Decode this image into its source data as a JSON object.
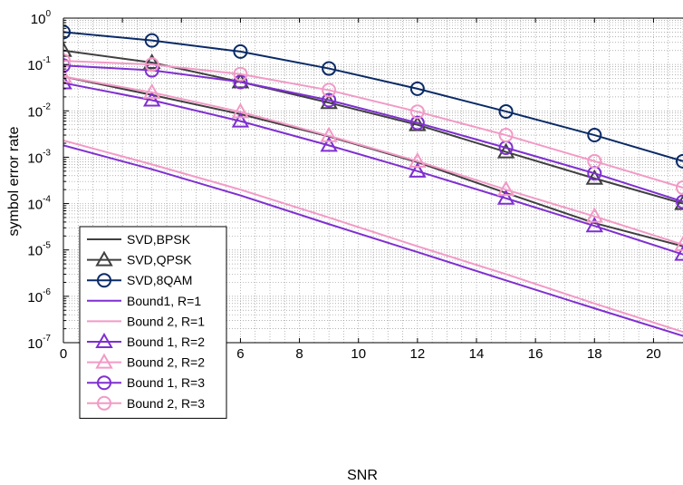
{
  "chart_data": {
    "type": "line",
    "xlabel": "SNR",
    "ylabel": "symbol error rate",
    "xlim": [
      0,
      21
    ],
    "ylim": [
      1e-07,
      1
    ],
    "yscale": "log",
    "grid": "on (major and minor, dotted)",
    "legend_position": "bottom-left",
    "x_ticks": [
      0,
      2,
      4,
      6,
      8,
      10,
      12,
      14,
      16,
      18,
      20
    ],
    "x_tick_labels": [
      "0",
      "2",
      "4",
      "6",
      "8",
      "10",
      "12",
      "14",
      "16",
      "18",
      "20"
    ],
    "y_ticks": [
      1e-07,
      1e-06,
      1e-05,
      0.0001,
      0.001,
      0.01,
      0.1,
      1
    ],
    "y_tick_labels": [
      {
        "base": "10",
        "exp": "-7"
      },
      {
        "base": "10",
        "exp": "-6"
      },
      {
        "base": "10",
        "exp": "-5"
      },
      {
        "base": "10",
        "exp": "-4"
      },
      {
        "base": "10",
        "exp": "-3"
      },
      {
        "base": "10",
        "exp": "-2"
      },
      {
        "base": "10",
        "exp": "-1"
      },
      {
        "base": "10",
        "exp": "0"
      }
    ],
    "series": [
      {
        "name": "SVD,BPSK",
        "color": "#404040",
        "marker": "none",
        "x": [
          0,
          3,
          6,
          9,
          12,
          15,
          18,
          21
        ],
        "y": [
          0.055,
          0.022,
          0.0085,
          0.0028,
          0.00078,
          0.00017,
          3.8e-05,
          1.2e-05
        ]
      },
      {
        "name": "SVD,QPSK",
        "color": "#404040",
        "marker": "triangle",
        "x": [
          0,
          3,
          6,
          9,
          12,
          15,
          18,
          21
        ],
        "y": [
          0.2,
          0.11,
          0.042,
          0.015,
          0.005,
          0.0013,
          0.00035,
          0.0001
        ]
      },
      {
        "name": "SVD,8QAM",
        "color": "#0a2a66",
        "marker": "circle",
        "x": [
          0,
          3,
          6,
          9,
          12,
          15,
          18,
          21
        ],
        "y": [
          0.5,
          0.33,
          0.19,
          0.082,
          0.03,
          0.0097,
          0.003,
          0.00082
        ]
      },
      {
        "name": "Bound1, R=1",
        "color": "#7f2fd0",
        "marker": "none",
        "x": [
          0,
          3,
          6,
          9,
          12,
          15,
          18,
          21
        ],
        "y": [
          0.0018,
          0.00055,
          0.00015,
          3.6e-05,
          9e-06,
          2.2e-06,
          5.5e-07,
          1.4e-07
        ]
      },
      {
        "name": "Bound 2, R=1",
        "color": "#f29ac6",
        "marker": "none",
        "x": [
          0,
          3,
          6,
          9,
          12,
          15,
          18,
          21
        ],
        "y": [
          0.0023,
          0.0007,
          0.0002,
          5e-05,
          1.2e-05,
          3e-06,
          7e-07,
          1.7e-07
        ]
      },
      {
        "name": "Bound 1, R=2",
        "color": "#7f2fd0",
        "marker": "triangle",
        "x": [
          0,
          3,
          6,
          9,
          12,
          15,
          18,
          21
        ],
        "y": [
          0.04,
          0.017,
          0.006,
          0.0018,
          0.0005,
          0.00013,
          3.3e-05,
          8e-06
        ]
      },
      {
        "name": "Bound 2, R=2",
        "color": "#f29ac6",
        "marker": "triangle",
        "x": [
          0,
          3,
          6,
          9,
          12,
          15,
          18,
          21
        ],
        "y": [
          0.055,
          0.025,
          0.0095,
          0.0029,
          0.00082,
          0.0002,
          5.3e-05,
          1.3e-05
        ]
      },
      {
        "name": "Bound 1, R=3",
        "color": "#7f2fd0",
        "marker": "circle",
        "x": [
          0,
          3,
          6,
          9,
          12,
          15,
          18,
          21
        ],
        "y": [
          0.095,
          0.075,
          0.042,
          0.017,
          0.0055,
          0.0016,
          0.00045,
          0.00011
        ]
      },
      {
        "name": "Bound 2, R=3",
        "color": "#f29ac6",
        "marker": "circle",
        "x": [
          0,
          3,
          6,
          9,
          12,
          15,
          18,
          21
        ],
        "y": [
          0.12,
          0.1,
          0.062,
          0.028,
          0.0096,
          0.003,
          0.00082,
          0.00022
        ]
      }
    ]
  }
}
